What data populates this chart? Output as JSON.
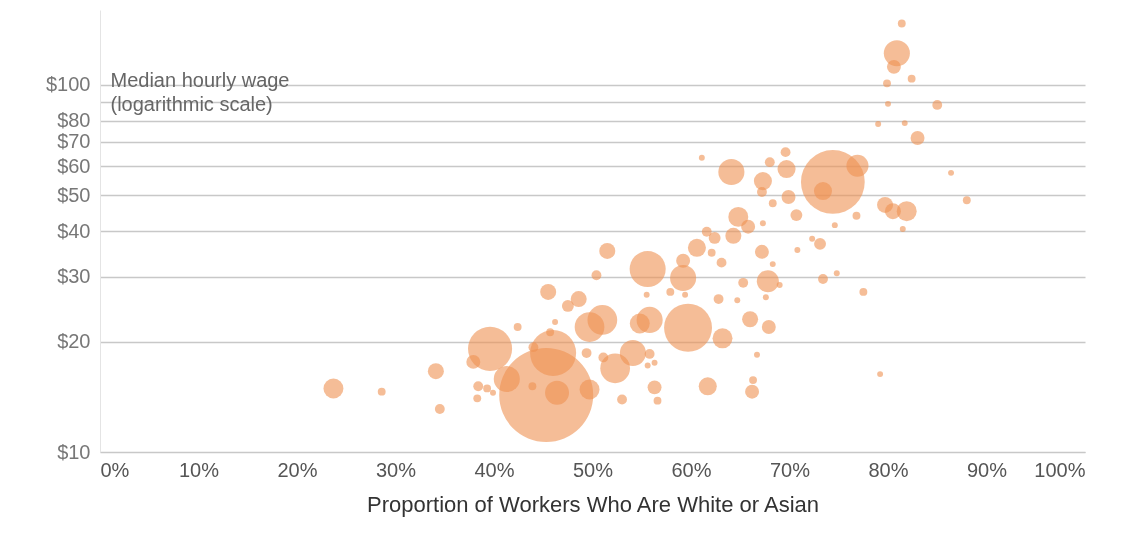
{
  "chart_data": {
    "type": "bubble",
    "xlabel": "Proportion of Workers Who Are White or Asian",
    "ylabel": "Median hourly wage\n(logarithmic scale)",
    "log": "y",
    "grid": "y",
    "xlim": [
      0,
      100
    ],
    "xticks": [
      {
        "value": 0,
        "label": "0%"
      },
      {
        "value": 10,
        "label": "10%"
      },
      {
        "value": 20,
        "label": "20%"
      },
      {
        "value": 30,
        "label": "30%"
      },
      {
        "value": 40,
        "label": "40%"
      },
      {
        "value": 50,
        "label": "50%"
      },
      {
        "value": 60,
        "label": "60%"
      },
      {
        "value": 70,
        "label": "70%"
      },
      {
        "value": 80,
        "label": "80%"
      },
      {
        "value": 90,
        "label": "90%"
      },
      {
        "value": 100,
        "label": "100%"
      }
    ],
    "ylim": [
      10,
      160
    ],
    "yticks": [
      {
        "value": 10,
        "label": "$10"
      },
      {
        "value": 20,
        "label": "$20"
      },
      {
        "value": 30,
        "label": "$30"
      },
      {
        "value": 40,
        "label": "$40"
      },
      {
        "value": 50,
        "label": "$50"
      },
      {
        "value": 60,
        "label": "$60"
      },
      {
        "value": 70,
        "label": "$70"
      },
      {
        "value": 80,
        "label": "$80"
      },
      {
        "value": 90,
        "label": null
      },
      {
        "value": 100,
        "label": "$100"
      }
    ],
    "series": [
      {
        "color": "#ef9152",
        "x": [
          23.7,
          28.6,
          34.1,
          34.5,
          39.6,
          37.9,
          41.3,
          38.4,
          39.3,
          39.9,
          38.3,
          42.4,
          45.5,
          43.9,
          44.0,
          45.7,
          46.2,
          45.3,
          46.0,
          46.4,
          49.7,
          51.0,
          52.3,
          54.1,
          55.6,
          59.2,
          59.7,
          63.2,
          55.8,
          54.8,
          51.5,
          60.6,
          59.2,
          61.7,
          56.3,
          53.0,
          56.6,
          66.0,
          65.3,
          62.8,
          64.3,
          62.4,
          63.1,
          62.1,
          47.5,
          48.6,
          50.4,
          66.2,
          51.1,
          49.4,
          55.8,
          55.6,
          56.3,
          55.5,
          59.4,
          57.9,
          64.7,
          49.7,
          61.1,
          64.1,
          64.8,
          65.8,
          61.6,
          83.0,
          69.6,
          68.0,
          69.7,
          74.4,
          76.9,
          73.4,
          67.3,
          67.2,
          68.3,
          69.9,
          70.7,
          79.7,
          80.5,
          81.9,
          76.8,
          74.6,
          81.5,
          86.4,
          88.0,
          67.3,
          72.3,
          73.1,
          70.8,
          67.2,
          68.3,
          67.8,
          69.0,
          67.6,
          73.4,
          74.8,
          77.5,
          67.9,
          81.4,
          80.9,
          80.6,
          82.4,
          79.9,
          80.0,
          85.0,
          79.0,
          81.7,
          79.2,
          66.3,
          66.7
        ],
        "values": [
          14.9,
          14.6,
          16.6,
          13.1,
          19.1,
          17.6,
          15.8,
          15.1,
          14.9,
          14.5,
          14.0,
          21.9,
          27.3,
          15.1,
          19.3,
          21.2,
          22.6,
          14.3,
          18.6,
          14.5,
          21.9,
          22.9,
          16.9,
          18.6,
          31.5,
          29.8,
          21.8,
          20.4,
          22.9,
          22.4,
          35.3,
          36.0,
          33.2,
          15.1,
          15.0,
          13.9,
          13.8,
          23.0,
          28.9,
          26.1,
          38.8,
          38.3,
          32.8,
          34.9,
          25.0,
          26.1,
          30.3,
          14.6,
          18.1,
          18.6,
          18.5,
          17.2,
          17.5,
          26.8,
          26.8,
          27.3,
          25.9,
          14.8,
          63.3,
          57.9,
          43.7,
          41.1,
          39.8,
          71.7,
          65.6,
          61.6,
          59.0,
          54.4,
          60.2,
          51.4,
          54.7,
          51.1,
          47.6,
          49.5,
          44.2,
          47.1,
          45.3,
          45.3,
          44.0,
          41.5,
          40.5,
          57.6,
          48.5,
          42.0,
          38.1,
          36.9,
          35.5,
          35.1,
          32.5,
          29.2,
          28.5,
          26.4,
          29.6,
          30.7,
          27.3,
          21.9,
          147,
          122,
          112,
          104,
          101,
          88.8,
          88.2,
          78.3,
          78.7,
          16.3,
          15.7,
          18.4
        ],
        "sizes": [
          0.045,
          0.007,
          0.029,
          0.011,
          0.22,
          0.022,
          0.077,
          0.011,
          0.007,
          0.004,
          0.007,
          0.007,
          0.029,
          0.007,
          0.011,
          0.007,
          0.004,
          1,
          0.24,
          0.065,
          0.1,
          0.1,
          0.1,
          0.077,
          0.147,
          0.077,
          0.26,
          0.045,
          0.077,
          0.045,
          0.029,
          0.037,
          0.022,
          0.037,
          0.022,
          0.011,
          0.007,
          0.029,
          0.011,
          0.011,
          0.029,
          0.016,
          0.011,
          0.007,
          0.016,
          0.029,
          0.011,
          0.022,
          0.011,
          0.011,
          0.011,
          0.004,
          0.004,
          0.004,
          0.004,
          0.007,
          0.004,
          0.045,
          0.004,
          0.077,
          0.045,
          0.022,
          0.011,
          0.022,
          0.011,
          0.011,
          0.037,
          0.46,
          0.055,
          0.037,
          0.037,
          0.011,
          0.007,
          0.022,
          0.016,
          0.029,
          0.029,
          0.045,
          0.007,
          0.004,
          0.004,
          0.004,
          0.007,
          0.004,
          0.004,
          0.016,
          0.004,
          0.022,
          0.004,
          0.055,
          0.004,
          0.004,
          0.011,
          0.004,
          0.007,
          0.022,
          0.007,
          0.077,
          0.022,
          0.007,
          0.007,
          0.004,
          0.011,
          0.004,
          0.004,
          0.004,
          0.007,
          0.004
        ]
      }
    ]
  }
}
